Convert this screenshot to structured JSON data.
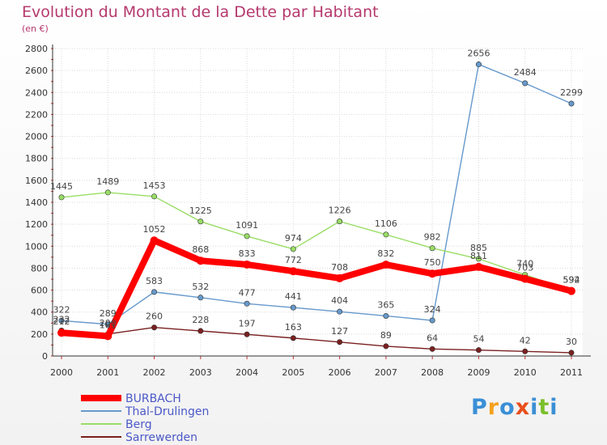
{
  "chart_data": {
    "type": "line",
    "title": "Evolution du Montant de la Dette par Habitant",
    "subtitle": "(en €)",
    "categories": [
      "2000",
      "2001",
      "2002",
      "2003",
      "2004",
      "2005",
      "2006",
      "2007",
      "2008",
      "2009",
      "2010",
      "2011"
    ],
    "ylim": [
      0,
      2800
    ],
    "yticks": [
      0,
      200,
      400,
      600,
      800,
      1000,
      1200,
      1400,
      1600,
      1800,
      2000,
      2200,
      2400,
      2600,
      2800
    ],
    "grid": true,
    "legend": "bottom-left",
    "series": [
      {
        "name": "BURBACH",
        "color": "#ff0000",
        "values": [
          212,
          181,
          1052,
          868,
          833,
          772,
          708,
          832,
          750,
          811,
          703,
          592
        ]
      },
      {
        "name": "Thal-Drulingen",
        "color": "#6699cc",
        "values": [
          322,
          289,
          583,
          532,
          477,
          441,
          404,
          365,
          324,
          2656,
          2484,
          2299
        ]
      },
      {
        "name": "Berg",
        "color": "#99dd66",
        "values": [
          1445,
          1489,
          1453,
          1225,
          1091,
          974,
          1226,
          1106,
          982,
          885,
          740,
          594
        ]
      },
      {
        "name": "Sarrewerden",
        "color": "#7a2020",
        "values": [
          232,
          200,
          260,
          228,
          197,
          163,
          127,
          89,
          64,
          54,
          42,
          30
        ]
      }
    ]
  },
  "logo": {
    "text": "Proxiti",
    "colors": [
      "#3a8fd6",
      "#f4a11d",
      "#3a8fd6",
      "#e84f1c",
      "#3a8fd6",
      "#7bbf2a",
      "#3a8fd6"
    ]
  }
}
